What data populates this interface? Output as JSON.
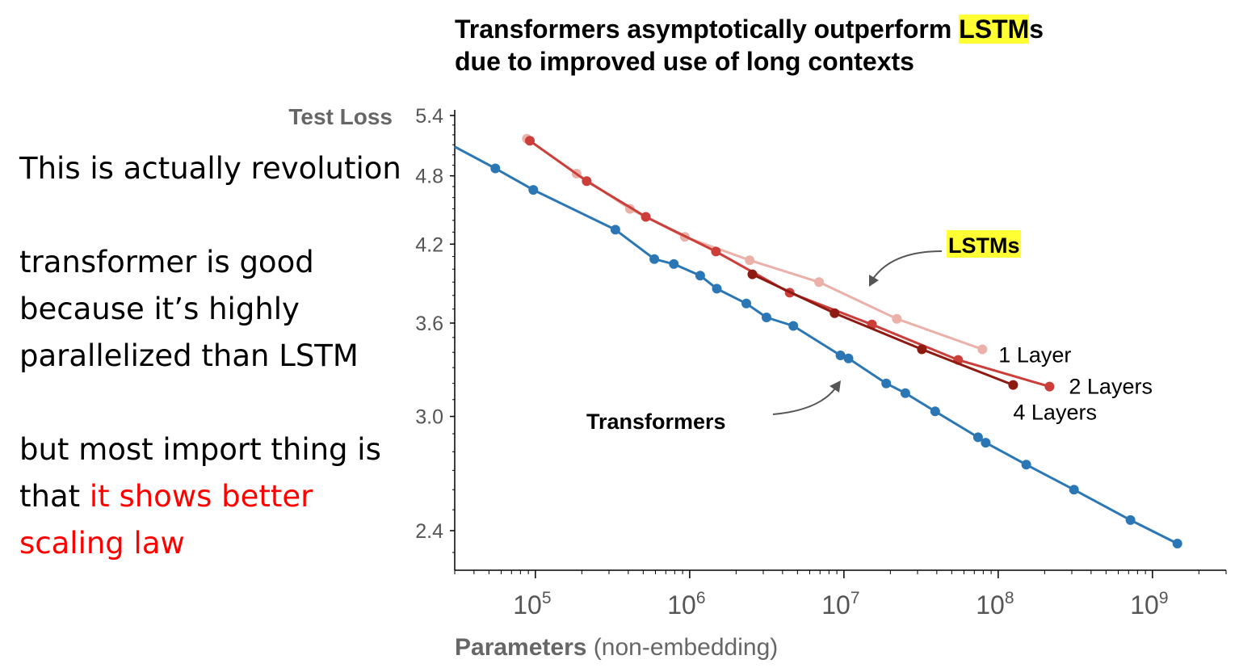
{
  "notes": {
    "line1": "This is actually revolution",
    "line2": "transformer is good because it’s highly parallelized than LSTM",
    "line3_prefix": "but most import thing is that ",
    "line3_highlight": "it shows better scaling law"
  },
  "colors": {
    "transformer": "#2b77b5",
    "lstm_1_layer": "#ebb0a8",
    "lstm_2_layers": "#cc3e3a",
    "lstm_4_layers": "#8e1a12",
    "highlight": "#ffff33",
    "note_red": "#ff0000"
  },
  "chart_data": {
    "type": "line",
    "title_line1_prefix": "Transformers asymptotically outperform ",
    "title_line1_highlight": "LSTM",
    "title_line1_suffix": "s",
    "title_line2": "due to improved use of long contexts",
    "ylabel": "Test Loss",
    "xlabel_bold": "Parameters",
    "xlabel_rest": " (non-embedding)",
    "x_scale": "log",
    "y_scale": "log",
    "xlim": [
      30000,
      3000000000
    ],
    "ylim": [
      2.2,
      5.4
    ],
    "yticks": [
      {
        "value": 2.4,
        "label": "2.4"
      },
      {
        "value": 3.0,
        "label": "3.0"
      },
      {
        "value": 3.6,
        "label": "3.6"
      },
      {
        "value": 4.2,
        "label": "4.2"
      },
      {
        "value": 4.8,
        "label": "4.8"
      },
      {
        "value": 5.4,
        "label": "5.4"
      }
    ],
    "xticks": [
      {
        "value": 100000,
        "base": "10",
        "exp": "5"
      },
      {
        "value": 1000000,
        "base": "10",
        "exp": "6"
      },
      {
        "value": 10000000,
        "base": "10",
        "exp": "7"
      },
      {
        "value": 100000000,
        "base": "10",
        "exp": "8"
      },
      {
        "value": 1000000000,
        "base": "10",
        "exp": "9"
      }
    ],
    "annotations": {
      "transformers": "Transformers",
      "lstms_highlight": "LSTM",
      "lstms_suffix": "s"
    },
    "series": [
      {
        "name": "Transformers",
        "label": "",
        "color": "#2b77b5",
        "points": [
          {
            "x": 30000,
            "y": 5.08,
            "marker": false
          },
          {
            "x": 55000,
            "y": 4.87
          },
          {
            "x": 97000,
            "y": 4.67
          },
          {
            "x": 330000,
            "y": 4.32
          },
          {
            "x": 590000,
            "y": 4.08
          },
          {
            "x": 790000,
            "y": 4.04
          },
          {
            "x": 1170000,
            "y": 3.95
          },
          {
            "x": 1500000,
            "y": 3.85
          },
          {
            "x": 2330000,
            "y": 3.74
          },
          {
            "x": 3150000,
            "y": 3.64
          },
          {
            "x": 4700000,
            "y": 3.58
          },
          {
            "x": 9500000,
            "y": 3.38
          },
          {
            "x": 10700000,
            "y": 3.36
          },
          {
            "x": 18800000,
            "y": 3.2
          },
          {
            "x": 25000000,
            "y": 3.14
          },
          {
            "x": 39000000,
            "y": 3.03
          },
          {
            "x": 74000000,
            "y": 2.88
          },
          {
            "x": 83000000,
            "y": 2.85
          },
          {
            "x": 152000000,
            "y": 2.73
          },
          {
            "x": 310000000,
            "y": 2.6
          },
          {
            "x": 720000000,
            "y": 2.45
          },
          {
            "x": 1450000000,
            "y": 2.34
          }
        ]
      },
      {
        "name": "LSTM 1 Layer",
        "label": "1 Layer",
        "color": "#ebb0a8",
        "points": [
          {
            "x": 88000,
            "y": 5.16
          },
          {
            "x": 185000,
            "y": 4.82
          },
          {
            "x": 410000,
            "y": 4.5
          },
          {
            "x": 930000,
            "y": 4.26
          },
          {
            "x": 2450000,
            "y": 4.07
          },
          {
            "x": 6900000,
            "y": 3.9
          },
          {
            "x": 22000000,
            "y": 3.63
          },
          {
            "x": 79000000,
            "y": 3.42
          }
        ]
      },
      {
        "name": "LSTM 2 Layers",
        "label": "2 Layers",
        "color": "#cc3e3a",
        "points": [
          {
            "x": 92000,
            "y": 5.14
          },
          {
            "x": 215000,
            "y": 4.75
          },
          {
            "x": 520000,
            "y": 4.43
          },
          {
            "x": 1480000,
            "y": 4.14
          },
          {
            "x": 4450000,
            "y": 3.82
          },
          {
            "x": 15200000,
            "y": 3.59
          },
          {
            "x": 55000000,
            "y": 3.35
          },
          {
            "x": 215000000,
            "y": 3.18
          }
        ]
      },
      {
        "name": "LSTM 4 Layers",
        "label": "4 Layers",
        "color": "#8e1a12",
        "points": [
          {
            "x": 2550000,
            "y": 3.96
          },
          {
            "x": 8700000,
            "y": 3.67
          },
          {
            "x": 32000000,
            "y": 3.42
          },
          {
            "x": 125000000,
            "y": 3.19
          }
        ]
      }
    ]
  }
}
